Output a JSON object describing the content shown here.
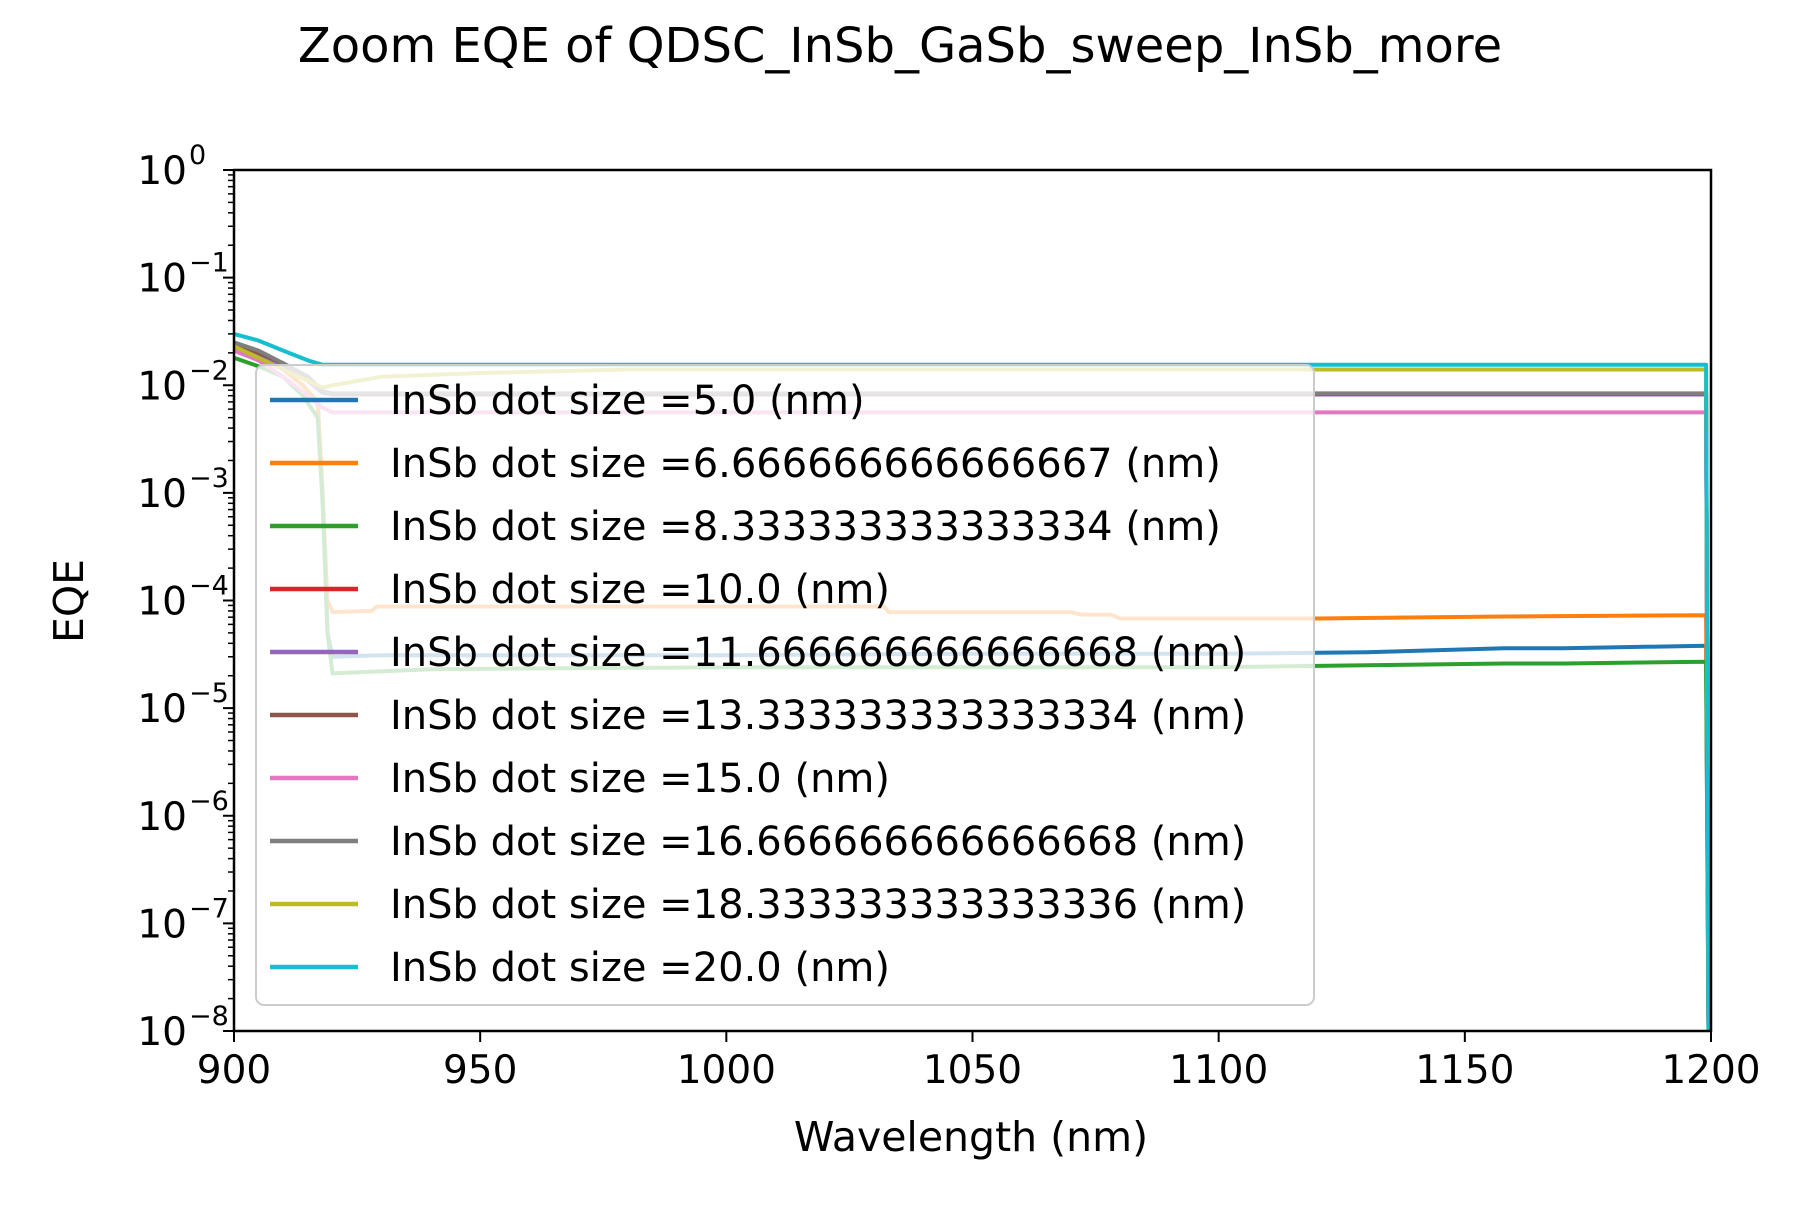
{
  "chart_data": {
    "type": "line",
    "title": "Zoom EQE of QDSC_InSb_GaSb_sweep_InSb_more",
    "xlabel": "Wavelength (nm)",
    "ylabel": "EQE",
    "xlim": [
      900,
      1200
    ],
    "ylim": [
      1e-08,
      1
    ],
    "yscale": "log",
    "x_ticks": [
      "900",
      "950",
      "1000",
      "1050",
      "1100",
      "1150",
      "1200"
    ],
    "y_ticks": [
      {
        "base": "10",
        "exp": "0"
      },
      {
        "base": "10",
        "exp": "−1"
      },
      {
        "base": "10",
        "exp": "−2"
      },
      {
        "base": "10",
        "exp": "−3"
      },
      {
        "base": "10",
        "exp": "−4"
      },
      {
        "base": "10",
        "exp": "−5"
      },
      {
        "base": "10",
        "exp": "−6"
      },
      {
        "base": "10",
        "exp": "−7"
      },
      {
        "base": "10",
        "exp": "−8"
      }
    ],
    "grid": false,
    "legend_position": "center-left",
    "series": [
      {
        "name": "InSb dot size =5.0 (nm)",
        "color": "#1f77b4",
        "x": [
          900,
          905,
          910,
          914,
          917,
          918,
          919,
          920,
          930,
          960,
          1000,
          1050,
          1100,
          1130,
          1158,
          1170,
          1199,
          1199.5
        ],
        "y": [
          0.022,
          0.018,
          0.014,
          0.01,
          0.007,
          0.001,
          5e-05,
          3e-05,
          3.1e-05,
          3.1e-05,
          3.1e-05,
          3.2e-05,
          3.2e-05,
          3.3e-05,
          3.6e-05,
          3.6e-05,
          3.8e-05,
          1e-08
        ]
      },
      {
        "name": "InSb dot size =6.666666666666667 (nm)",
        "color": "#ff7f0e",
        "x": [
          900,
          905,
          910,
          914,
          917,
          918,
          919,
          920,
          928,
          929,
          1032,
          1033,
          1070,
          1072,
          1078,
          1080,
          1120,
          1158,
          1199,
          1199.5
        ],
        "y": [
          0.022,
          0.018,
          0.014,
          0.01,
          0.007,
          0.001,
          0.0001,
          7.8e-05,
          8e-05,
          8.8e-05,
          8.8e-05,
          7.8e-05,
          7.8e-05,
          7.4e-05,
          7.4e-05,
          6.8e-05,
          6.8e-05,
          7.1e-05,
          7.3e-05,
          1e-08
        ]
      },
      {
        "name": "InSb dot size =8.333333333333334 (nm)",
        "color": "#2ca02c",
        "x": [
          900,
          905,
          910,
          914,
          917,
          918,
          919,
          920,
          940,
          1000,
          1050,
          1100,
          1130,
          1158,
          1170,
          1199,
          1199.5
        ],
        "y": [
          0.018,
          0.015,
          0.012,
          0.008,
          0.005,
          0.0008,
          5e-05,
          2.1e-05,
          2.3e-05,
          2.4e-05,
          2.4e-05,
          2.4e-05,
          2.5e-05,
          2.6e-05,
          2.6e-05,
          2.7e-05,
          1e-08
        ]
      },
      {
        "name": "InSb dot size =10.0 (nm)",
        "color": "#d62728",
        "x": [
          900,
          905,
          910,
          915,
          918,
          920,
          1199,
          1199.5
        ],
        "y": [
          0.023,
          0.019,
          0.015,
          0.011,
          0.0085,
          0.0082,
          0.0082,
          1e-08
        ]
      },
      {
        "name": "InSb dot size =11.666666666666668 (nm)",
        "color": "#9467bd",
        "x": [
          900,
          905,
          910,
          915,
          918,
          920,
          1199,
          1199.5
        ],
        "y": [
          0.023,
          0.019,
          0.015,
          0.011,
          0.0085,
          0.0082,
          0.0082,
          1e-08
        ]
      },
      {
        "name": "InSb dot size =13.333333333333334 (nm)",
        "color": "#8c564b",
        "x": [
          900,
          905,
          910,
          915,
          918,
          920,
          1199,
          1199.5
        ],
        "y": [
          0.024,
          0.02,
          0.016,
          0.012,
          0.0088,
          0.0083,
          0.0083,
          1e-08
        ]
      },
      {
        "name": "InSb dot size =15.0 (nm)",
        "color": "#e377c2",
        "x": [
          900,
          905,
          910,
          915,
          918,
          920,
          1199,
          1199.5
        ],
        "y": [
          0.021,
          0.017,
          0.012,
          0.008,
          0.0062,
          0.0056,
          0.0056,
          1e-08
        ]
      },
      {
        "name": "InSb dot size =16.666666666666668 (nm)",
        "color": "#7f7f7f",
        "x": [
          900,
          905,
          910,
          915,
          918,
          920,
          1199,
          1199.5
        ],
        "y": [
          0.025,
          0.021,
          0.016,
          0.012,
          0.0088,
          0.0084,
          0.0084,
          1e-08
        ]
      },
      {
        "name": "InSb dot size =18.333333333333336 (nm)",
        "color": "#bcbd22",
        "x": [
          900,
          905,
          910,
          915,
          918,
          920,
          930,
          950,
          980,
          1199,
          1199.5
        ],
        "y": [
          0.023,
          0.018,
          0.014,
          0.011,
          0.0095,
          0.01,
          0.012,
          0.013,
          0.014,
          0.014,
          1e-08
        ]
      },
      {
        "name": "InSb dot size =20.0 (nm)",
        "color": "#17becf",
        "x": [
          900,
          905,
          910,
          915,
          918,
          920,
          1199,
          1199.5
        ],
        "y": [
          0.03,
          0.026,
          0.021,
          0.017,
          0.0155,
          0.0155,
          0.0155,
          1e-08
        ]
      }
    ]
  }
}
